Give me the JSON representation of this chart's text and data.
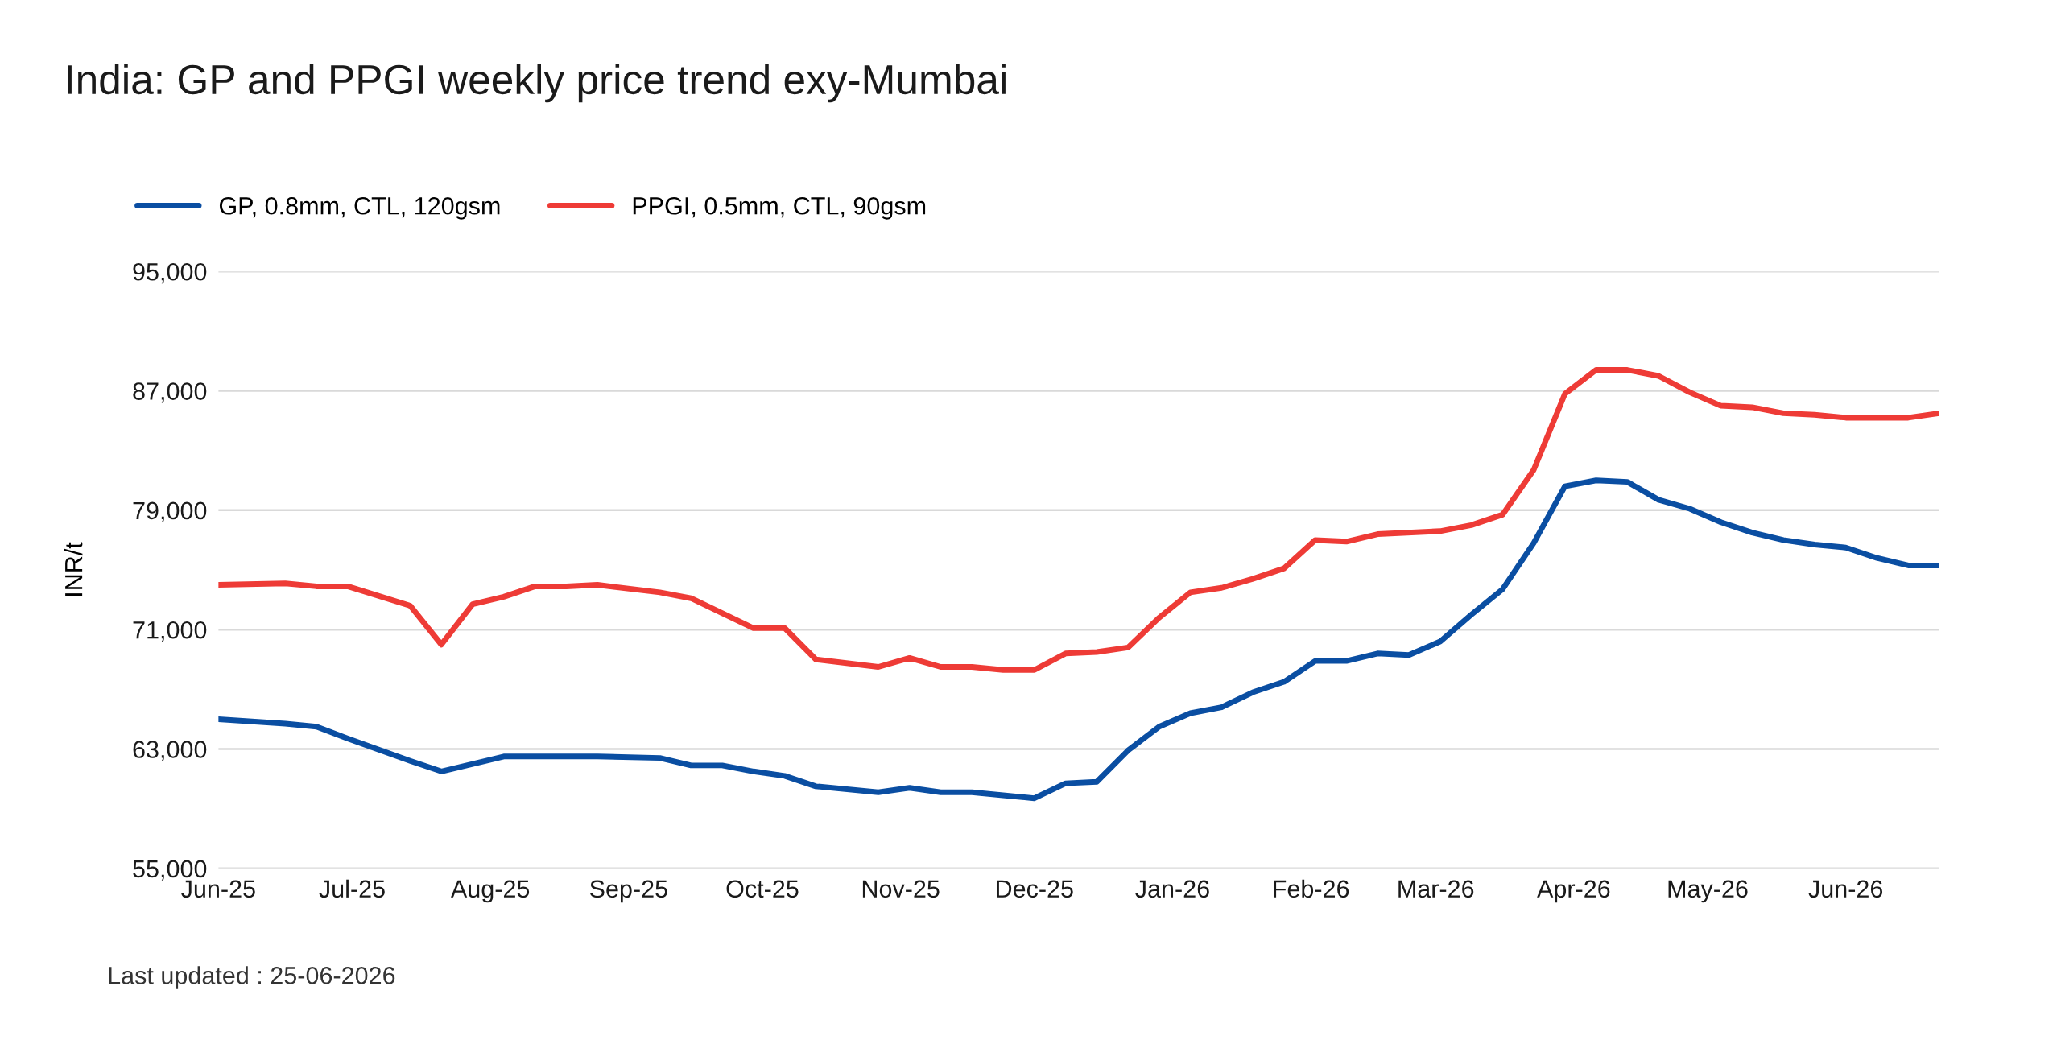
{
  "chart_data": {
    "type": "line",
    "title": "India: GP and PPGI weekly price trend exy-Mumbai",
    "ylabel": "INR/t",
    "annotations": [
      "Last updated : 25-06-2026"
    ],
    "series": [
      {
        "name": "GP, 0.8mm, CTL, 120gsm",
        "color": "#0a4ea2",
        "x": [
          "2025-06-01",
          "2025-06-16",
          "2025-06-23",
          "2025-06-30",
          "2025-07-14",
          "2025-07-21",
          "2025-08-04",
          "2025-08-25",
          "2025-09-08",
          "2025-09-15",
          "2025-09-22",
          "2025-09-29",
          "2025-10-06",
          "2025-10-13",
          "2025-10-27",
          "2025-11-03",
          "2025-11-10",
          "2025-11-17",
          "2025-11-24",
          "2025-12-01",
          "2025-12-08",
          "2025-12-15",
          "2025-12-22",
          "2025-12-29",
          "2026-01-05",
          "2026-01-12",
          "2026-01-19",
          "2026-01-26",
          "2026-02-02",
          "2026-02-09",
          "2026-02-16",
          "2026-02-23",
          "2026-03-02",
          "2026-03-09",
          "2026-03-16",
          "2026-03-23",
          "2026-03-30",
          "2026-04-06",
          "2026-04-13",
          "2026-04-20",
          "2026-04-27",
          "2026-05-04",
          "2026-05-11",
          "2026-05-18",
          "2026-05-25",
          "2026-06-01",
          "2026-06-08",
          "2026-06-15",
          "2026-06-22"
        ],
        "values": [
          65000,
          64700,
          64500,
          63700,
          62200,
          61500,
          62500,
          62500,
          62400,
          61900,
          61900,
          61500,
          61200,
          60500,
          60100,
          60400,
          60100,
          60100,
          59900,
          59700,
          60700,
          60800,
          62900,
          64500,
          65400,
          65800,
          66800,
          67500,
          68900,
          68900,
          69400,
          69300,
          70200,
          72000,
          73700,
          76800,
          80600,
          81000,
          80900,
          79700,
          79100,
          78200,
          77500,
          77000,
          76700,
          76500,
          75800,
          75300,
          75300
        ]
      },
      {
        "name": "PPGI, 0.5mm, CTL, 90gsm",
        "color": "#ee3b36",
        "x": [
          "2025-06-01",
          "2025-06-16",
          "2025-06-23",
          "2025-06-30",
          "2025-07-14",
          "2025-07-21",
          "2025-07-28",
          "2025-08-04",
          "2025-08-11",
          "2025-08-18",
          "2025-08-25",
          "2025-09-08",
          "2025-09-15",
          "2025-09-29",
          "2025-10-06",
          "2025-10-13",
          "2025-10-27",
          "2025-11-03",
          "2025-11-10",
          "2025-11-17",
          "2025-11-24",
          "2025-12-01",
          "2025-12-08",
          "2025-12-15",
          "2025-12-22",
          "2025-12-29",
          "2026-01-05",
          "2026-01-12",
          "2026-01-19",
          "2026-01-26",
          "2026-02-02",
          "2026-02-09",
          "2026-02-16",
          "2026-03-02",
          "2026-03-09",
          "2026-03-16",
          "2026-03-23",
          "2026-03-30",
          "2026-04-06",
          "2026-04-13",
          "2026-04-20",
          "2026-04-27",
          "2026-05-04",
          "2026-05-11",
          "2026-05-18",
          "2026-05-25",
          "2026-06-01",
          "2026-06-15",
          "2026-06-22"
        ],
        "values": [
          74000,
          74100,
          73900,
          73900,
          72600,
          70000,
          72700,
          73200,
          73900,
          73900,
          74000,
          73500,
          73100,
          71100,
          71100,
          69000,
          68500,
          69100,
          68500,
          68500,
          68300,
          68300,
          69400,
          69500,
          69800,
          71800,
          73500,
          73800,
          74400,
          75100,
          77000,
          76900,
          77400,
          77600,
          78000,
          78700,
          81700,
          86800,
          88400,
          88400,
          88000,
          86900,
          86000,
          85900,
          85500,
          85400,
          85200,
          85200,
          85500
        ]
      }
    ],
    "xlim": [
      "2025-06-01",
      "2026-06-22"
    ],
    "xticks": [
      {
        "value": "2025-06-01",
        "label": "Jun-25"
      },
      {
        "value": "2025-07-01",
        "label": "Jul-25"
      },
      {
        "value": "2025-08-01",
        "label": "Aug-25"
      },
      {
        "value": "2025-09-01",
        "label": "Sep-25"
      },
      {
        "value": "2025-10-01",
        "label": "Oct-25"
      },
      {
        "value": "2025-11-01",
        "label": "Nov-25"
      },
      {
        "value": "2025-12-01",
        "label": "Dec-25"
      },
      {
        "value": "2026-01-01",
        "label": "Jan-26"
      },
      {
        "value": "2026-02-01",
        "label": "Feb-26"
      },
      {
        "value": "2026-03-01",
        "label": "Mar-26"
      },
      {
        "value": "2026-04-01",
        "label": "Apr-26"
      },
      {
        "value": "2026-05-01",
        "label": "May-26"
      },
      {
        "value": "2026-06-01",
        "label": "Jun-26"
      }
    ],
    "ylim": [
      55000,
      95000
    ],
    "yticks": [
      {
        "value": 55000,
        "label": "55,000"
      },
      {
        "value": 63000,
        "label": "63,000"
      },
      {
        "value": 71000,
        "label": "71,000"
      },
      {
        "value": 79000,
        "label": "79,000"
      },
      {
        "value": 87000,
        "label": "87,000"
      },
      {
        "value": 95000,
        "label": "95,000"
      }
    ],
    "grid": "y",
    "legend": "top left",
    "marker": "none",
    "line_style": "solid"
  }
}
